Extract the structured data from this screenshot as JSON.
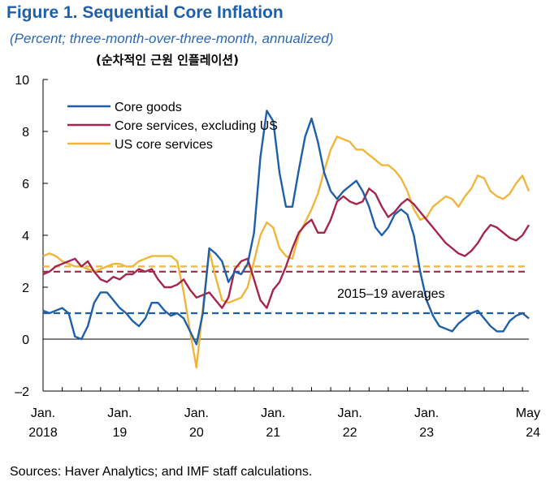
{
  "figure": {
    "title": "Figure 1.  Sequential Core Inflation",
    "subtitle": "(Percent; three-month-over-three-month, annualized)",
    "subtitle_ko": "(순차적인 근원 인플레이션)",
    "source": "Sources: Haver Analytics; and IMF staff calculations."
  },
  "chart_data": {
    "type": "line",
    "title": "Figure 1.  Sequential Core Inflation",
    "ylabel": "",
    "xlabel": "",
    "ylim": [
      -2,
      10
    ],
    "yticks": [
      "10",
      "8",
      "6",
      "4",
      "2",
      "0",
      "–2"
    ],
    "grid": false,
    "legend_position": "top-left",
    "x_start": "2018-01",
    "x_end": "2024-05",
    "xticks": [
      {
        "line1": "Jan.",
        "line2": "2018",
        "date": "2018-01"
      },
      {
        "line1": "Jan.",
        "line2": "19",
        "date": "2019-01"
      },
      {
        "line1": "Jan.",
        "line2": "20",
        "date": "2020-01"
      },
      {
        "line1": "Jan.",
        "line2": "21",
        "date": "2021-01"
      },
      {
        "line1": "Jan.",
        "line2": "22",
        "date": "2022-01"
      },
      {
        "line1": "Jan.",
        "line2": "23",
        "date": "2023-01"
      },
      {
        "line1": "May",
        "line2": "24",
        "date": "2024-05"
      }
    ],
    "annotation": "2015–19 averages",
    "series": [
      {
        "name": "Core goods",
        "color": "#1f5fa8",
        "average": 1.0,
        "values": [
          1.1,
          1.0,
          1.1,
          1.2,
          1.0,
          0.1,
          0.0,
          0.5,
          1.4,
          1.8,
          1.8,
          1.5,
          1.2,
          1.0,
          0.7,
          0.5,
          0.8,
          1.4,
          1.4,
          1.1,
          0.9,
          1.0,
          0.8,
          0.3,
          -0.2,
          1.0,
          3.5,
          3.3,
          3.0,
          2.2,
          2.6,
          2.5,
          2.9,
          4.1,
          7.0,
          8.8,
          8.4,
          6.4,
          5.1,
          5.1,
          6.5,
          7.8,
          8.5,
          7.6,
          6.4,
          5.7,
          5.4,
          5.7,
          5.9,
          6.1,
          5.7,
          5.1,
          4.3,
          4.0,
          4.3,
          4.8,
          5.0,
          4.8,
          4.0,
          2.6,
          1.5,
          0.9,
          0.5,
          0.4,
          0.3,
          0.6,
          0.8,
          1.0,
          1.1,
          0.8,
          0.5,
          0.3,
          0.3,
          0.7,
          0.9,
          1.0,
          0.8
        ]
      },
      {
        "name": "Core services, excluding US",
        "color": "#a4264a",
        "average": 2.6,
        "values": [
          2.5,
          2.6,
          2.8,
          2.9,
          3.0,
          3.1,
          2.8,
          3.0,
          2.6,
          2.3,
          2.2,
          2.4,
          2.3,
          2.5,
          2.5,
          2.7,
          2.6,
          2.7,
          2.3,
          2.0,
          2.0,
          2.1,
          2.3,
          1.9,
          1.6,
          1.7,
          1.8,
          1.5,
          1.2,
          1.6,
          2.7,
          3.0,
          3.1,
          2.3,
          1.5,
          1.2,
          1.9,
          2.2,
          2.8,
          3.5,
          4.1,
          4.4,
          4.6,
          4.1,
          4.1,
          4.6,
          5.3,
          5.5,
          5.3,
          5.2,
          5.3,
          5.8,
          5.6,
          5.1,
          4.7,
          4.9,
          5.2,
          5.4,
          5.2,
          4.9,
          4.6,
          4.3,
          4.0,
          3.7,
          3.5,
          3.3,
          3.2,
          3.4,
          3.7,
          4.1,
          4.4,
          4.3,
          4.1,
          3.9,
          3.8,
          4.0,
          4.4
        ]
      },
      {
        "name": "US core services",
        "color": "#f0b63c",
        "average": 2.8,
        "values": [
          3.2,
          3.3,
          3.2,
          3.0,
          2.9,
          2.8,
          2.8,
          2.7,
          2.6,
          2.7,
          2.8,
          2.9,
          2.9,
          2.8,
          2.8,
          3.0,
          3.1,
          3.2,
          3.2,
          3.2,
          3.2,
          3.0,
          1.8,
          0.3,
          -1.1,
          1.2,
          3.4,
          2.4,
          1.5,
          1.4,
          1.5,
          1.6,
          2.0,
          3.0,
          4.0,
          4.5,
          4.3,
          3.5,
          3.2,
          3.1,
          4.0,
          4.5,
          5.0,
          5.6,
          6.5,
          7.3,
          7.8,
          7.7,
          7.6,
          7.3,
          7.3,
          7.1,
          6.9,
          6.7,
          6.7,
          6.5,
          6.2,
          5.7,
          5.0,
          4.6,
          4.7,
          5.1,
          5.3,
          5.5,
          5.4,
          5.1,
          5.5,
          5.8,
          6.3,
          6.2,
          5.7,
          5.5,
          5.4,
          5.6,
          6.0,
          6.3,
          5.7
        ]
      }
    ]
  }
}
